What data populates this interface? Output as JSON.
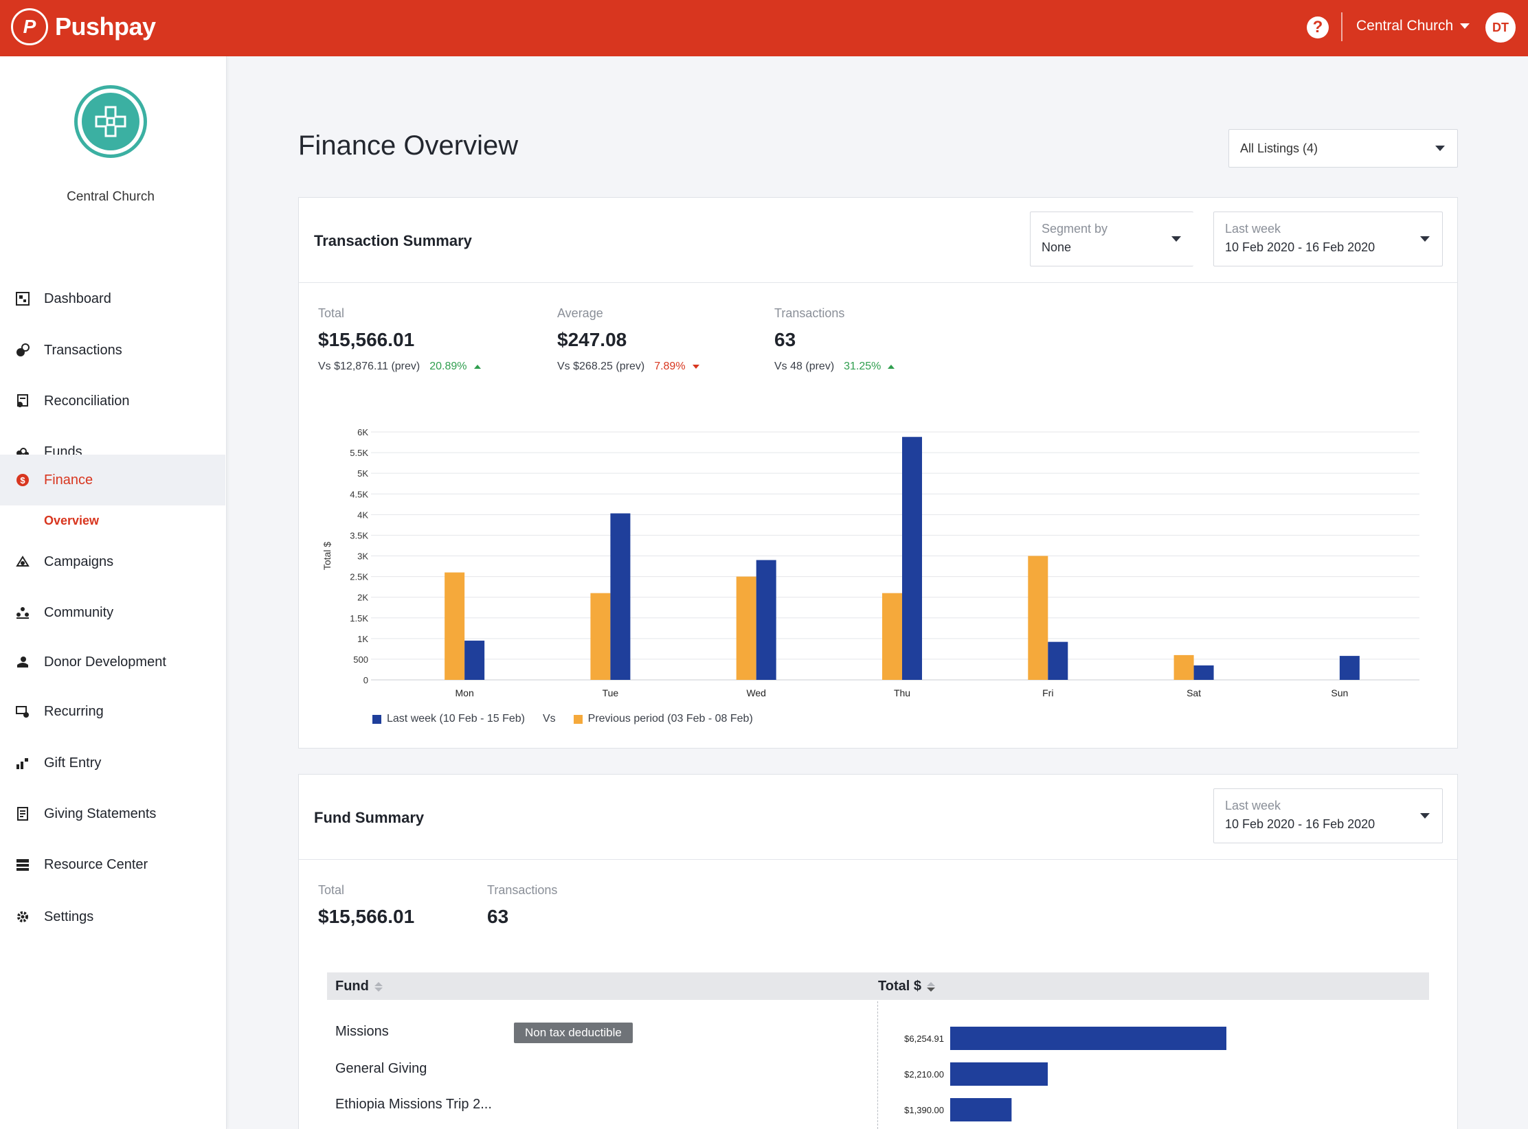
{
  "topbar": {
    "brand": "Pushpay",
    "brand_mark": "P",
    "help": "?",
    "org": "Central Church",
    "avatar_initials": "DT"
  },
  "sidebar": {
    "church_name": "Central Church",
    "items": [
      {
        "label": "Dashboard",
        "icon": "dashboard-icon"
      },
      {
        "label": "Transactions",
        "icon": "transactions-icon"
      },
      {
        "label": "Reconciliation",
        "icon": "reconciliation-icon"
      },
      {
        "label": "Funds",
        "icon": "funds-icon"
      },
      {
        "label": "Finance",
        "icon": "finance-icon",
        "active": true
      },
      {
        "label": "Campaigns",
        "icon": "campaigns-icon"
      },
      {
        "label": "Community",
        "icon": "community-icon"
      },
      {
        "label": "Donor Development",
        "icon": "donor-development-icon"
      },
      {
        "label": "Recurring",
        "icon": "recurring-icon"
      },
      {
        "label": "Gift Entry",
        "icon": "gift-entry-icon"
      },
      {
        "label": "Giving Statements",
        "icon": "giving-statements-icon"
      },
      {
        "label": "Resource Center",
        "icon": "resource-center-icon"
      },
      {
        "label": "Settings",
        "icon": "settings-icon"
      }
    ],
    "sub_item": "Overview"
  },
  "page": {
    "title": "Finance Overview",
    "listing_select": "All Listings (4)"
  },
  "transaction_summary": {
    "title": "Transaction Summary",
    "segment_label": "Segment by",
    "segment_value": "None",
    "range_label": "Last week",
    "range_value": "10 Feb 2020 - 16 Feb 2020",
    "stats": [
      {
        "label": "Total",
        "value": "$15,566.01",
        "prev": "Vs $12,876.11 (prev)",
        "pct": "20.89%",
        "dir": "up"
      },
      {
        "label": "Average",
        "value": "$247.08",
        "prev": "Vs $268.25 (prev)",
        "pct": "7.89%",
        "dir": "down"
      },
      {
        "label": "Transactions",
        "value": "63",
        "prev": "Vs 48 (prev)",
        "pct": "31.25%",
        "dir": "up"
      }
    ],
    "legend_current": "Last week (10 Feb - 15 Feb)",
    "legend_vs": "Vs",
    "legend_previous": "Previous period (03 Feb - 08 Feb)"
  },
  "chart_data": {
    "type": "bar",
    "categories": [
      "Mon",
      "Tue",
      "Wed",
      "Thu",
      "Fri",
      "Sat",
      "Sun"
    ],
    "series": [
      {
        "name": "Previous period (03 Feb - 08 Feb)",
        "color": "#f5a93b",
        "values": [
          2600,
          2100,
          2500,
          2100,
          3000,
          600,
          0
        ]
      },
      {
        "name": "Last week (10 Feb - 15 Feb)",
        "color": "#1f3f9b",
        "values": [
          950,
          4030,
          2900,
          5880,
          920,
          350,
          580
        ]
      }
    ],
    "ylabel": "Total $",
    "ylim": [
      0,
      6000
    ],
    "yticks": [
      0,
      500,
      1000,
      1500,
      2000,
      2500,
      3000,
      3500,
      4000,
      4500,
      5000,
      5500,
      6000
    ],
    "ytick_labels": [
      "0",
      "500",
      "1K",
      "1.5K",
      "2K",
      "2.5K",
      "3K",
      "3.5K",
      "4K",
      "4.5K",
      "5K",
      "5.5K",
      "6K"
    ],
    "grid": true,
    "legend_position": "bottom-left"
  },
  "fund_summary": {
    "title": "Fund Summary",
    "range_label": "Last week",
    "range_value": "10 Feb 2020 - 16 Feb 2020",
    "total_label": "Total",
    "total_value": "$15,566.01",
    "tx_label": "Transactions",
    "tx_value": "63",
    "col_fund": "Fund",
    "col_total": "Total $",
    "rows": [
      {
        "name": "Missions",
        "badge": "Non tax deductible",
        "amount": 6254.91,
        "amount_label": "$6,254.91"
      },
      {
        "name": "General Giving",
        "amount": 2210.0,
        "amount_label": "$2,210.00"
      },
      {
        "name": "Ethiopia Missions Trip 2...",
        "amount": 1390.0,
        "amount_label": "$1,390.00"
      }
    ],
    "bar_color": "#1f3f9b"
  }
}
